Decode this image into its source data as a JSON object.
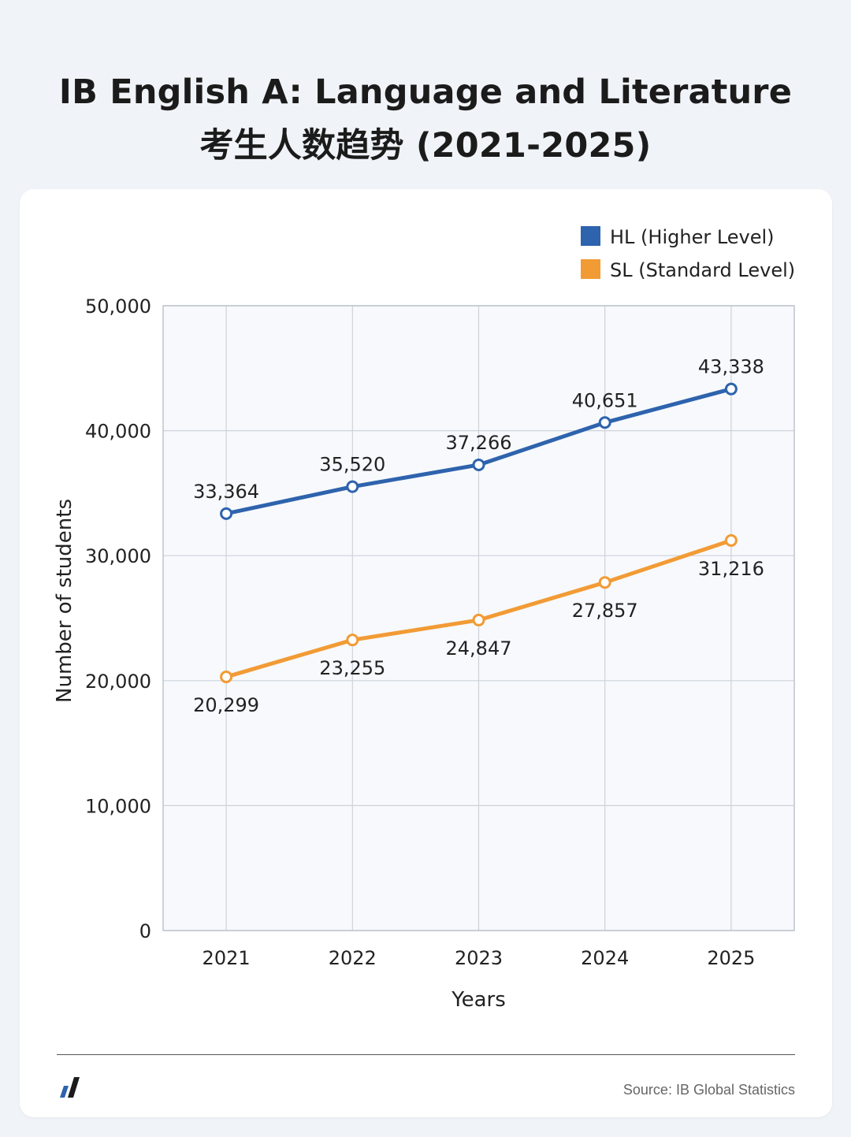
{
  "title": {
    "line1": "IB English A: Language and Literature",
    "line2": "考生人数趋势 (2021-2025)"
  },
  "chart_data": {
    "type": "line",
    "x": [
      "2021",
      "2022",
      "2023",
      "2024",
      "2025"
    ],
    "series": [
      {
        "name": "HL (Higher Level)",
        "color": "#2e63ad",
        "values": [
          33364,
          35520,
          37266,
          40651,
          43338
        ],
        "labels": [
          "33,364",
          "35,520",
          "37,266",
          "40,651",
          "43,338"
        ],
        "label_position": "above"
      },
      {
        "name": "SL (Standard Level)",
        "color": "#f29b35",
        "values": [
          20299,
          23255,
          24847,
          27857,
          31216
        ],
        "labels": [
          "20,299",
          "23,255",
          "24,847",
          "27,857",
          "31,216"
        ],
        "label_position": "below"
      }
    ],
    "xlabel": "Years",
    "ylabel": "Number of students",
    "ylim": [
      0,
      50000
    ],
    "yticks": [
      0,
      10000,
      20000,
      30000,
      40000,
      50000
    ],
    "ytick_labels": [
      "0",
      "10,000",
      "20,000",
      "30,000",
      "40,000",
      "50,000"
    ],
    "grid": true,
    "legend": "top-right"
  },
  "footer": {
    "source": "Source: IB Global Statistics",
    "logo_icon": "slash-logo-icon"
  }
}
